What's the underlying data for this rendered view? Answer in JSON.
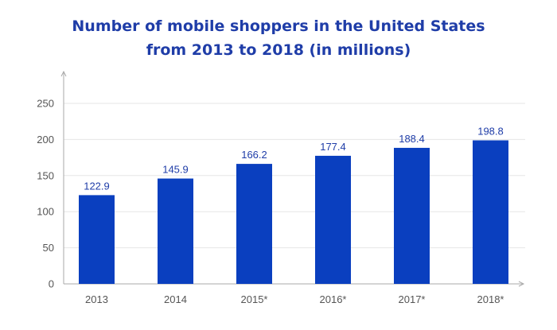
{
  "chart_data": {
    "type": "bar",
    "title_lines": [
      "Number of mobile shoppers in the United States",
      "from 2013 to 2018 (in millions)"
    ],
    "categories": [
      "2013",
      "2014",
      "2015*",
      "2016*",
      "2017*",
      "2018*"
    ],
    "values": [
      122.9,
      145.9,
      166.2,
      177.4,
      188.4,
      198.8
    ],
    "data_labels": [
      "122.9",
      "145.9",
      "166.2",
      "177.4",
      "188.4",
      "198.8"
    ],
    "y_ticks": [
      0,
      50,
      100,
      150,
      200,
      250
    ],
    "ylim": [
      0,
      250
    ],
    "grid": true,
    "legend": "none",
    "bar_color": "#0a3fbf",
    "title_color": "#1f3da8"
  }
}
